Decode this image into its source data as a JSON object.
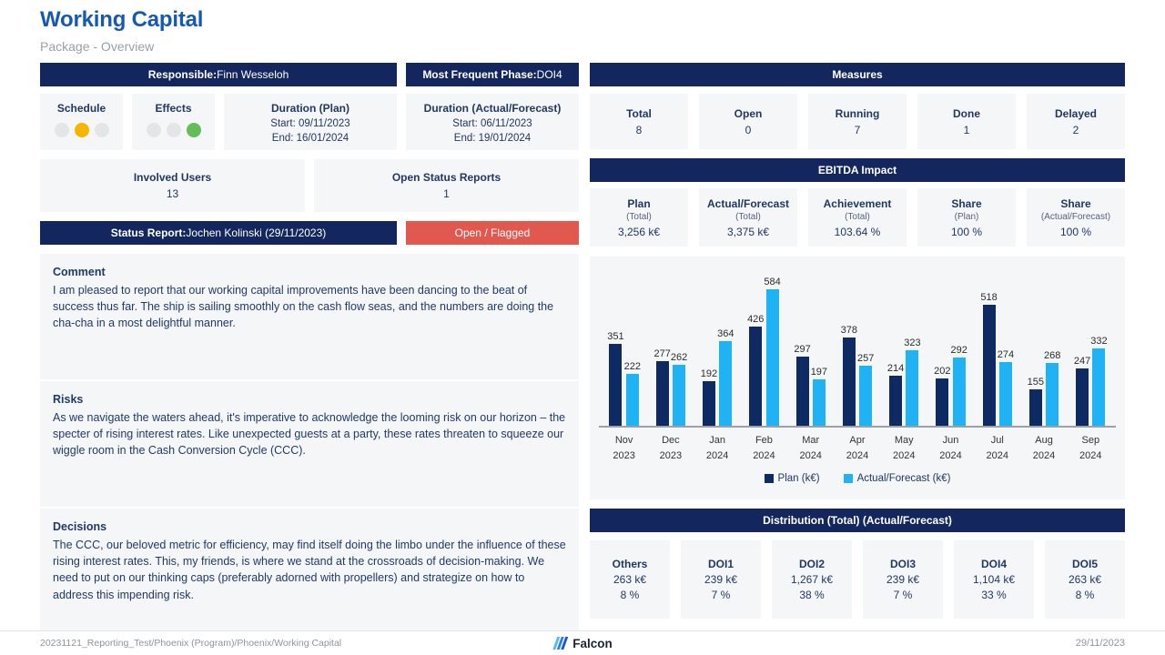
{
  "page": {
    "title": "Working Capital",
    "subtitle": "Package - Overview"
  },
  "left": {
    "responsible_label": "Responsible:",
    "responsible_value": "Finn Wesseloh",
    "phase_label": "Most Frequent Phase:",
    "phase_value": "DOI4",
    "schedule": {
      "label": "Schedule",
      "lights": [
        "off",
        "yellow",
        "off"
      ]
    },
    "effects": {
      "label": "Effects",
      "lights": [
        "off",
        "off",
        "green"
      ]
    },
    "duration_plan": {
      "label": "Duration (Plan)",
      "start": "Start: 09/11/2023",
      "end": "End: 16/01/2024"
    },
    "duration_actual": {
      "label": "Duration (Actual/Forecast)",
      "start": "Start: 06/11/2023",
      "end": "End: 19/01/2024"
    },
    "involved_users": {
      "label": "Involved Users",
      "value": "13"
    },
    "open_status_reports": {
      "label": "Open Status Reports",
      "value": "1"
    },
    "status_report_label": "Status Report:",
    "status_report_value": "Jochen Kolinski (29/11/2023)",
    "status_badge": "Open / Flagged",
    "comment": {
      "title": "Comment",
      "text": "I am pleased to report that our working capital improvements have been dancing to the beat of success thus far. The ship is sailing smoothly on the cash flow seas, and the numbers are doing the cha-cha in a most delightful manner."
    },
    "risks": {
      "title": "Risks",
      "text": "As we navigate the waters ahead, it's imperative to acknowledge the looming risk on our horizon – the specter of rising interest rates. Like unexpected guests at a party, these rates threaten to squeeze our wiggle room in the Cash Conversion Cycle (CCC)."
    },
    "decisions": {
      "title": "Decisions",
      "text": "The CCC, our beloved metric for efficiency, may find itself doing the limbo under the influence of these rising interest rates. This, my friends, is where we stand at the crossroads of decision-making. We need to put on our thinking caps (preferably adorned with propellers) and strategize on how to address this impending risk."
    }
  },
  "measures": {
    "header": "Measures",
    "items": [
      {
        "label": "Total",
        "value": "8"
      },
      {
        "label": "Open",
        "value": "0"
      },
      {
        "label": "Running",
        "value": "7"
      },
      {
        "label": "Done",
        "value": "1"
      },
      {
        "label": "Delayed",
        "value": "2"
      }
    ]
  },
  "ebitda": {
    "header": "EBITDA Impact",
    "items": [
      {
        "label": "Plan",
        "sub": "(Total)",
        "value": "3,256 k€"
      },
      {
        "label": "Actual/Forecast",
        "sub": "(Total)",
        "value": "3,375 k€"
      },
      {
        "label": "Achievement",
        "sub": "(Total)",
        "value": "103.64 %"
      },
      {
        "label": "Share",
        "sub": "(Plan)",
        "value": "100 %"
      },
      {
        "label": "Share",
        "sub": "(Actual/Forecast)",
        "value": "100 %"
      }
    ]
  },
  "chart_data": {
    "type": "bar",
    "categories": [
      "Nov 2023",
      "Dec 2023",
      "Jan 2024",
      "Feb 2024",
      "Mar 2024",
      "Apr 2024",
      "May 2024",
      "Jun 2024",
      "Jul 2024",
      "Aug 2024",
      "Sep 2024"
    ],
    "series": [
      {
        "name": "Plan (k€)",
        "color": "#0e2a63",
        "values": [
          351,
          277,
          192,
          426,
          297,
          378,
          214,
          202,
          518,
          155,
          247
        ]
      },
      {
        "name": "Actual/Forecast (k€)",
        "color": "#1fb2f5",
        "values": [
          222,
          262,
          364,
          584,
          197,
          257,
          323,
          292,
          274,
          268,
          332
        ]
      }
    ],
    "title": "",
    "xlabel": "",
    "ylabel": "",
    "ylim": [
      0,
      584
    ],
    "grid": false,
    "legend_position": "bottom",
    "value_labels": true
  },
  "distribution": {
    "header": "Distribution (Total) (Actual/Forecast)",
    "items": [
      {
        "label": "Others",
        "value": "263 k€",
        "share": "8 %"
      },
      {
        "label": "DOI1",
        "value": "239 k€",
        "share": "7 %"
      },
      {
        "label": "DOI2",
        "value": "1,267 k€",
        "share": "38 %"
      },
      {
        "label": "DOI3",
        "value": "239 k€",
        "share": "7 %"
      },
      {
        "label": "DOI4",
        "value": "1,104 k€",
        "share": "33 %"
      },
      {
        "label": "DOI5",
        "value": "263 k€",
        "share": "8 %"
      }
    ]
  },
  "footer": {
    "path": "20231121_Reporting_Test/Phoenix (Program)/Phoenix/Working Capital",
    "brand": "Falcon",
    "date": "29/11/2023"
  },
  "colors": {
    "navy": "#14265e",
    "title_blue": "#1659b2",
    "card_bg": "#f5f6f8",
    "status_red": "#e0584e",
    "bar_plan": "#0e2a63",
    "bar_actual": "#1fb2f5",
    "light_yellow": "#f8b500",
    "light_green": "#63bd58",
    "light_off": "#e4e5e7"
  }
}
